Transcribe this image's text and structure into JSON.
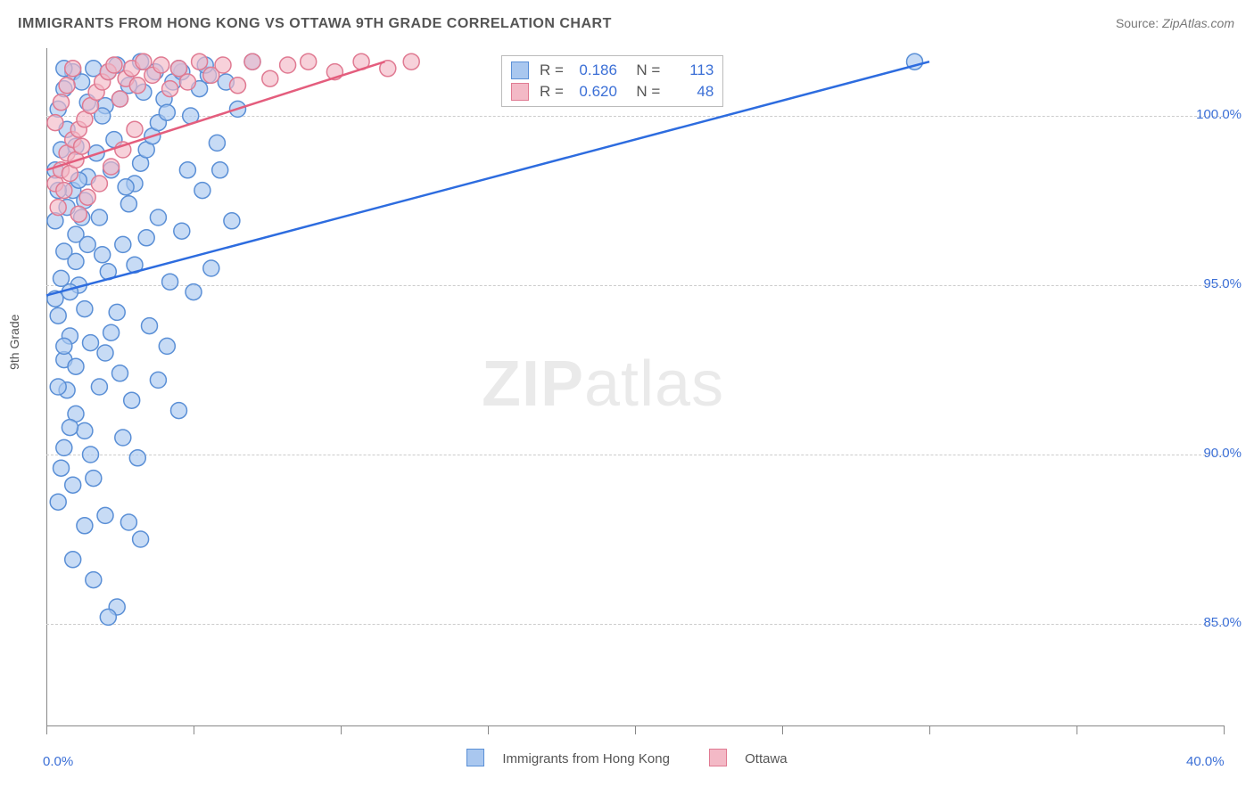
{
  "title": "IMMIGRANTS FROM HONG KONG VS OTTAWA 9TH GRADE CORRELATION CHART",
  "source_label": "Source: ",
  "source_value": "ZipAtlas.com",
  "watermark_bold": "ZIP",
  "watermark_light": "atlas",
  "ylabel": "9th Grade",
  "chart": {
    "type": "scatter_with_regression",
    "xlim": [
      0,
      40
    ],
    "ylim": [
      82,
      102
    ],
    "x_ticks": [
      0,
      5,
      10,
      15,
      20,
      25,
      30,
      35,
      40
    ],
    "x_tick_labels": [
      "0.0%",
      "",
      "",
      "",
      "",
      "",
      "",
      "",
      "40.0%"
    ],
    "y_gridlines": [
      85,
      90,
      95,
      100
    ],
    "y_tick_labels": [
      "85.0%",
      "90.0%",
      "95.0%",
      "100.0%"
    ],
    "background_color": "#ffffff",
    "grid_color": "#cccccc",
    "axis_color": "#555555",
    "series": [
      {
        "name": "Immigrants from Hong Kong",
        "marker_color_fill": "#a9c7ef",
        "marker_color_stroke": "#5a8fd6",
        "marker_opacity": 0.65,
        "marker_radius": 9,
        "line_color": "#2d6cdf",
        "line_width": 2.5,
        "R": 0.186,
        "N": 113,
        "regression": {
          "x1": 0,
          "y1": 94.7,
          "x2": 30,
          "y2": 101.6
        },
        "points": [
          [
            0.3,
            94.6
          ],
          [
            0.5,
            95.2
          ],
          [
            0.6,
            96.0
          ],
          [
            0.4,
            94.1
          ],
          [
            0.8,
            93.5
          ],
          [
            0.6,
            92.8
          ],
          [
            1.0,
            96.5
          ],
          [
            1.2,
            97.0
          ],
          [
            0.9,
            97.8
          ],
          [
            1.4,
            98.2
          ],
          [
            1.1,
            95.0
          ],
          [
            1.3,
            94.3
          ],
          [
            0.7,
            91.9
          ],
          [
            1.0,
            91.2
          ],
          [
            1.3,
            90.7
          ],
          [
            1.5,
            90.0
          ],
          [
            0.5,
            89.6
          ],
          [
            0.9,
            89.1
          ],
          [
            1.8,
            92.0
          ],
          [
            2.0,
            93.0
          ],
          [
            2.2,
            93.6
          ],
          [
            2.4,
            94.2
          ],
          [
            2.1,
            95.4
          ],
          [
            2.6,
            96.2
          ],
          [
            2.8,
            97.4
          ],
          [
            3.0,
            98.0
          ],
          [
            3.2,
            98.6
          ],
          [
            3.4,
            99.0
          ],
          [
            3.6,
            99.4
          ],
          [
            3.8,
            99.8
          ],
          [
            4.0,
            100.5
          ],
          [
            4.3,
            101.0
          ],
          [
            4.6,
            101.3
          ],
          [
            4.9,
            100.0
          ],
          [
            5.2,
            100.8
          ],
          [
            5.5,
            101.2
          ],
          [
            2.0,
            88.2
          ],
          [
            2.8,
            88.0
          ],
          [
            3.2,
            87.5
          ],
          [
            1.6,
            86.3
          ],
          [
            2.4,
            85.5
          ],
          [
            2.1,
            85.2
          ],
          [
            0.4,
            88.6
          ],
          [
            0.6,
            90.2
          ],
          [
            0.8,
            90.8
          ],
          [
            1.0,
            92.6
          ],
          [
            0.7,
            97.3
          ],
          [
            0.4,
            97.8
          ],
          [
            0.3,
            98.4
          ],
          [
            0.5,
            99.0
          ],
          [
            0.7,
            99.6
          ],
          [
            0.4,
            100.2
          ],
          [
            0.6,
            100.8
          ],
          [
            0.9,
            101.3
          ],
          [
            1.2,
            101.0
          ],
          [
            1.6,
            101.4
          ],
          [
            2.0,
            100.3
          ],
          [
            2.4,
            101.5
          ],
          [
            2.8,
            100.9
          ],
          [
            3.2,
            101.6
          ],
          [
            4.8,
            98.4
          ],
          [
            5.3,
            97.8
          ],
          [
            5.8,
            99.2
          ],
          [
            6.1,
            101.0
          ],
          [
            6.5,
            100.2
          ],
          [
            7.0,
            101.6
          ],
          [
            3.0,
            95.6
          ],
          [
            3.4,
            96.4
          ],
          [
            3.8,
            97.0
          ],
          [
            4.2,
            95.1
          ],
          [
            4.6,
            96.6
          ],
          [
            5.0,
            94.8
          ],
          [
            1.7,
            98.9
          ],
          [
            1.9,
            100.0
          ],
          [
            2.3,
            99.3
          ],
          [
            0.3,
            96.9
          ],
          [
            1.4,
            96.2
          ],
          [
            1.1,
            98.1
          ],
          [
            2.5,
            92.4
          ],
          [
            2.9,
            91.6
          ],
          [
            3.5,
            93.8
          ],
          [
            4.1,
            93.2
          ],
          [
            1.6,
            89.3
          ],
          [
            1.9,
            95.9
          ],
          [
            5.6,
            95.5
          ],
          [
            6.3,
            96.9
          ],
          [
            3.8,
            92.2
          ],
          [
            4.5,
            91.3
          ],
          [
            3.1,
            89.9
          ],
          [
            2.6,
            90.5
          ],
          [
            0.9,
            86.9
          ],
          [
            1.3,
            87.9
          ],
          [
            2.2,
            98.4
          ],
          [
            2.7,
            97.9
          ],
          [
            5.4,
            101.5
          ],
          [
            5.9,
            98.4
          ],
          [
            3.3,
            100.7
          ],
          [
            3.7,
            101.3
          ],
          [
            4.1,
            100.1
          ],
          [
            4.5,
            101.4
          ],
          [
            29.5,
            101.6
          ],
          [
            0.4,
            92.0
          ],
          [
            0.6,
            93.2
          ],
          [
            0.8,
            94.8
          ],
          [
            1.0,
            95.7
          ],
          [
            1.3,
            97.5
          ],
          [
            1.5,
            93.3
          ],
          [
            1.8,
            97.0
          ],
          [
            2.1,
            101.3
          ],
          [
            2.5,
            100.5
          ],
          [
            0.6,
            101.4
          ],
          [
            1.0,
            99.1
          ],
          [
            1.4,
            100.4
          ]
        ]
      },
      {
        "name": "Ottawa",
        "marker_color_fill": "#f3b9c6",
        "marker_color_stroke": "#e07a92",
        "marker_opacity": 0.65,
        "marker_radius": 9,
        "line_color": "#e45d7d",
        "line_width": 2.5,
        "R": 0.62,
        "N": 48,
        "regression": {
          "x1": 0,
          "y1": 98.4,
          "x2": 11.5,
          "y2": 101.6
        },
        "points": [
          [
            0.3,
            98.0
          ],
          [
            0.5,
            98.4
          ],
          [
            0.7,
            98.9
          ],
          [
            0.9,
            99.3
          ],
          [
            1.1,
            99.6
          ],
          [
            1.3,
            99.9
          ],
          [
            0.4,
            97.3
          ],
          [
            0.6,
            97.8
          ],
          [
            0.8,
            98.3
          ],
          [
            1.0,
            98.7
          ],
          [
            1.2,
            99.1
          ],
          [
            1.5,
            100.3
          ],
          [
            1.7,
            100.7
          ],
          [
            1.9,
            101.0
          ],
          [
            2.1,
            101.3
          ],
          [
            2.3,
            101.5
          ],
          [
            2.5,
            100.5
          ],
          [
            2.7,
            101.1
          ],
          [
            2.9,
            101.4
          ],
          [
            3.1,
            100.9
          ],
          [
            3.3,
            101.6
          ],
          [
            3.6,
            101.2
          ],
          [
            3.9,
            101.5
          ],
          [
            4.2,
            100.8
          ],
          [
            4.5,
            101.4
          ],
          [
            4.8,
            101.0
          ],
          [
            5.2,
            101.6
          ],
          [
            5.6,
            101.2
          ],
          [
            6.0,
            101.5
          ],
          [
            6.5,
            100.9
          ],
          [
            7.0,
            101.6
          ],
          [
            7.6,
            101.1
          ],
          [
            8.2,
            101.5
          ],
          [
            8.9,
            101.6
          ],
          [
            9.8,
            101.3
          ],
          [
            10.7,
            101.6
          ],
          [
            11.6,
            101.4
          ],
          [
            12.4,
            101.6
          ],
          [
            0.3,
            99.8
          ],
          [
            0.5,
            100.4
          ],
          [
            0.7,
            100.9
          ],
          [
            0.9,
            101.4
          ],
          [
            1.1,
            97.1
          ],
          [
            1.4,
            97.6
          ],
          [
            1.8,
            98.0
          ],
          [
            2.2,
            98.5
          ],
          [
            2.6,
            99.0
          ],
          [
            3.0,
            99.6
          ]
        ]
      }
    ]
  },
  "legend_bottom": {
    "series_a": "Immigrants from Hong Kong",
    "series_b": "Ottawa"
  },
  "legend_box": {
    "rows": [
      {
        "r_label": "R =",
        "r_val": "0.186",
        "n_label": "N =",
        "n_val": "113"
      },
      {
        "r_label": "R =",
        "r_val": "0.620",
        "n_label": "N =",
        "n_val": "48"
      }
    ]
  }
}
